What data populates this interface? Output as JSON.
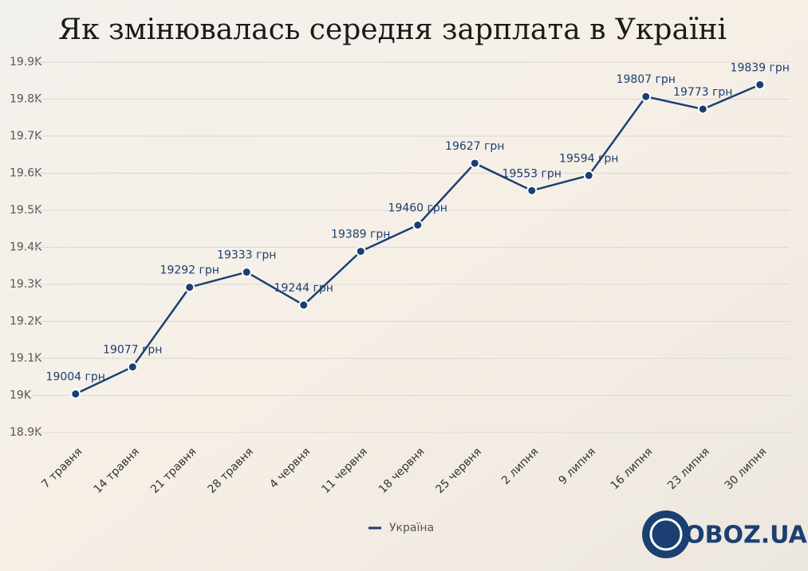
{
  "chart_data": {
    "type": "line",
    "title": "Як змінювалась середня зарплата в Україні",
    "categories": [
      "7 травня",
      "14 травня",
      "21 травня",
      "28 травня",
      "4 червня",
      "11 червня",
      "18 червня",
      "25 червня",
      "2 липня",
      "9 липня",
      "16 липня",
      "23 липня",
      "30 липня"
    ],
    "series": [
      {
        "name": "Україна",
        "color": "#1b3f72",
        "values": [
          19004,
          19077,
          19292,
          19333,
          19244,
          19389,
          19460,
          19627,
          19553,
          19594,
          19807,
          19773,
          19839
        ],
        "value_labels": [
          "19004 грн",
          "19077 грн",
          "19292 грн",
          "19333 грн",
          "19244 грн",
          "19389 грн",
          "19460 грн",
          "19627 грн",
          "19553 грн",
          "19594 грн",
          "19807 грн",
          "19773 грн",
          "19839 грн"
        ]
      }
    ],
    "ylim": [
      18900,
      19900
    ],
    "yticks": [
      {
        "value": 18900,
        "label": "18.9K"
      },
      {
        "value": 19000,
        "label": "19K"
      },
      {
        "value": 19100,
        "label": "19.1K"
      },
      {
        "value": 19200,
        "label": "19.2K"
      },
      {
        "value": 19300,
        "label": "19.3K"
      },
      {
        "value": 19400,
        "label": "19.4K"
      },
      {
        "value": 19500,
        "label": "19.5K"
      },
      {
        "value": 19600,
        "label": "19.6K"
      },
      {
        "value": 19700,
        "label": "19.7K"
      },
      {
        "value": 19800,
        "label": "19.8K"
      },
      {
        "value": 19900,
        "label": "19.9K"
      }
    ],
    "grid": true,
    "legend": "bottom"
  },
  "logo": "OBOZ.UA"
}
